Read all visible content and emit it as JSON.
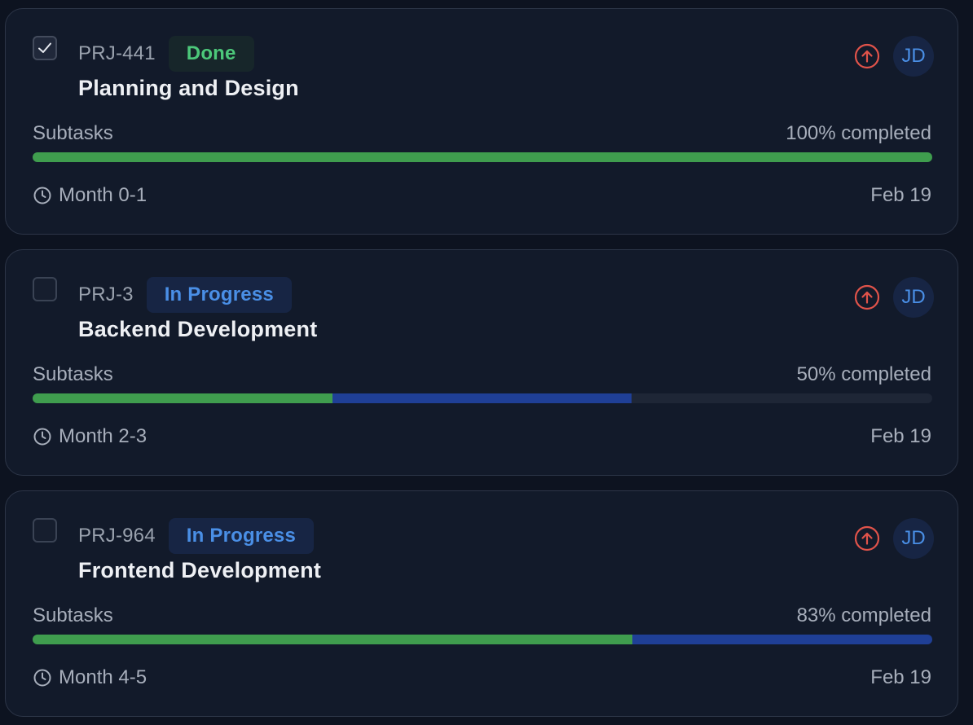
{
  "tasks": [
    {
      "key": "PRJ-441",
      "status": "Done",
      "title": "Planning and Design",
      "checked": true,
      "subtasks_label": "Subtasks",
      "completed_text": "100% completed",
      "progress": {
        "done": 1.0,
        "in_progress": 0.0
      },
      "period": "Month 0-1",
      "date": "Feb 19",
      "assignee": "JD",
      "priority_icon": "arrow-up-circle-icon"
    },
    {
      "key": "PRJ-3",
      "status": "In Progress",
      "title": "Backend Development",
      "checked": false,
      "subtasks_label": "Subtasks",
      "completed_text": "50% completed",
      "progress": {
        "done": 0.333,
        "in_progress": 0.333
      },
      "period": "Month 2-3",
      "date": "Feb 19",
      "assignee": "JD",
      "priority_icon": "arrow-up-circle-icon"
    },
    {
      "key": "PRJ-964",
      "status": "In Progress",
      "title": "Frontend Development",
      "checked": false,
      "subtasks_label": "Subtasks",
      "completed_text": "83% completed",
      "progress": {
        "done": 0.667,
        "in_progress": 0.333
      },
      "period": "Month 4-5",
      "date": "Feb 19",
      "assignee": "JD",
      "priority_icon": "arrow-up-circle-icon"
    }
  ],
  "colors": {
    "done_green": "#3f9d4e",
    "in_progress_blue": "#1f3f96",
    "priority_red": "#e0534a",
    "accent_blue": "#4a8fe6"
  }
}
